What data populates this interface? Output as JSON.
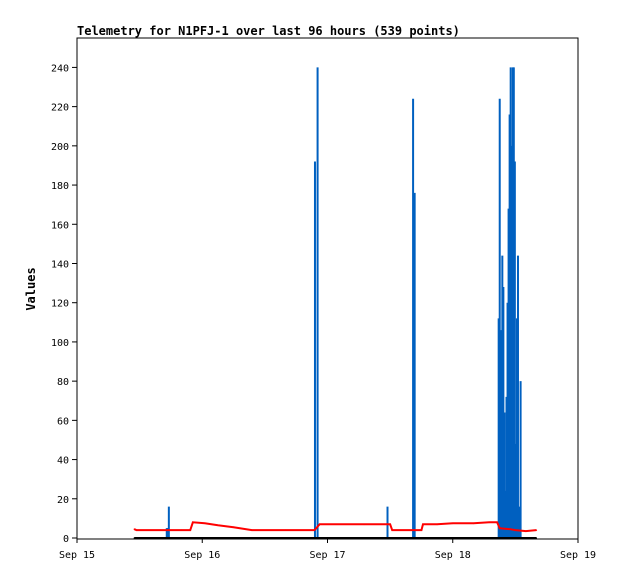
{
  "chart_data": {
    "type": "line",
    "title": "Telemetry for N1PFJ-1 over last 96 hours (539 points)",
    "xlabel": "",
    "ylabel": "Values",
    "x_ticks": [
      "Sep 15",
      "Sep 16",
      "Sep 17",
      "Sep 18",
      "Sep 19"
    ],
    "xlim_hours": [
      0,
      96
    ],
    "y_ticks": [
      0,
      20,
      40,
      60,
      80,
      100,
      120,
      140,
      160,
      180,
      200,
      220,
      240
    ],
    "ylim": [
      0,
      255
    ],
    "grid": false,
    "legend": "none",
    "series": [
      {
        "color": "#0060c0",
        "style": "spikes",
        "points": [
          [
            17.2,
            5
          ],
          [
            17.3,
            5
          ],
          [
            17.4,
            5
          ],
          [
            17.5,
            5
          ],
          [
            17.6,
            16
          ],
          [
            45.6,
            192
          ],
          [
            46.1,
            240
          ],
          [
            59.5,
            16
          ],
          [
            64.4,
            224
          ],
          [
            64.7,
            176
          ],
          [
            80.8,
            112
          ],
          [
            81.0,
            224
          ],
          [
            81.3,
            106
          ],
          [
            81.5,
            144
          ],
          [
            81.7,
            128
          ],
          [
            81.9,
            64
          ],
          [
            82.1,
            24
          ],
          [
            82.3,
            72
          ],
          [
            82.5,
            120
          ],
          [
            82.7,
            168
          ],
          [
            82.9,
            216
          ],
          [
            83.1,
            240
          ],
          [
            83.3,
            200
          ],
          [
            83.5,
            240
          ],
          [
            83.7,
            240
          ],
          [
            83.9,
            192
          ],
          [
            84.1,
            48
          ],
          [
            84.3,
            112
          ],
          [
            84.5,
            144
          ],
          [
            84.7,
            16
          ],
          [
            85.0,
            80
          ]
        ]
      },
      {
        "color": "#ff0000",
        "style": "line",
        "points": [
          [
            11.0,
            4.5
          ],
          [
            11.4,
            4
          ],
          [
            16.0,
            4
          ],
          [
            20.0,
            4
          ],
          [
            21.7,
            4
          ],
          [
            22.2,
            8
          ],
          [
            24.5,
            7.5
          ],
          [
            27.0,
            6.5
          ],
          [
            30.0,
            5.5
          ],
          [
            33.5,
            4
          ],
          [
            40.0,
            4
          ],
          [
            45.5,
            4
          ],
          [
            46.5,
            7
          ],
          [
            55.0,
            7
          ],
          [
            60.0,
            7
          ],
          [
            60.4,
            4
          ],
          [
            66.0,
            4
          ],
          [
            66.3,
            7
          ],
          [
            69.0,
            7
          ],
          [
            72.0,
            7.5
          ],
          [
            76.0,
            7.5
          ],
          [
            79.0,
            8
          ],
          [
            80.5,
            8
          ],
          [
            81.0,
            5
          ],
          [
            83.0,
            4.5
          ],
          [
            84.0,
            4
          ],
          [
            86.0,
            3.5
          ],
          [
            88.0,
            4
          ]
        ]
      },
      {
        "color": "#000000",
        "style": "line",
        "points": [
          [
            11.0,
            0
          ],
          [
            88.0,
            0
          ]
        ]
      }
    ]
  }
}
